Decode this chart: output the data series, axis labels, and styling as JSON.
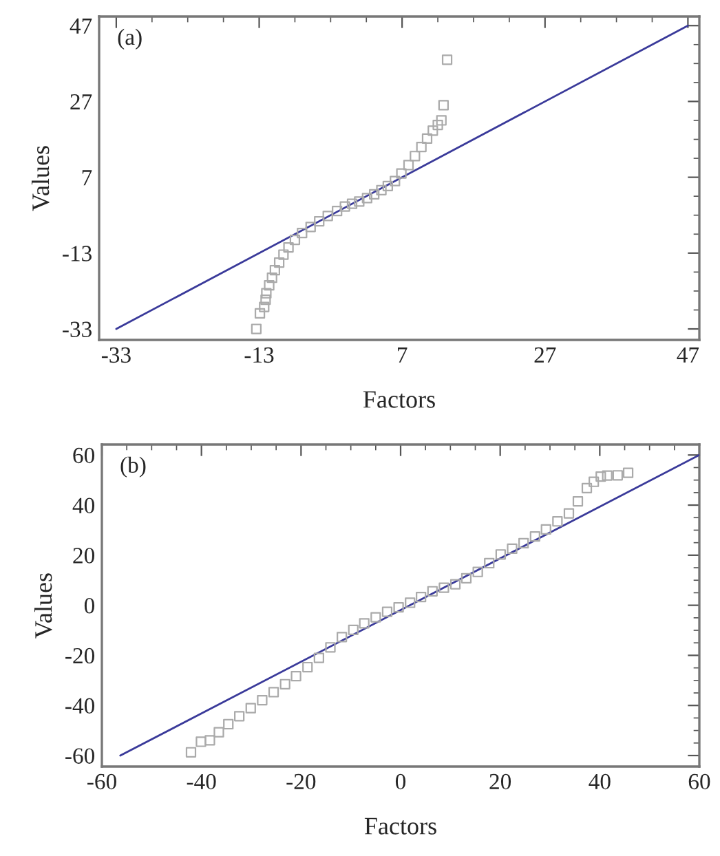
{
  "chart_data": [
    {
      "type": "scatter",
      "xlabel": "Factors",
      "ylabel": "Values",
      "annotations": [
        "(a)"
      ],
      "xlim": [
        -35.4,
        48.6
      ],
      "ylim": [
        -35.9,
        49.4
      ],
      "xticks": [
        -33,
        -13,
        7,
        27,
        47
      ],
      "yticks": [
        -33,
        -13,
        7,
        27,
        47
      ],
      "marker": "square",
      "grid": false,
      "series": [
        {
          "color": "#aaaaaa",
          "x": [
            -13.4,
            -12.9,
            -12.3,
            -12.1,
            -12.0,
            -11.6,
            -11.2,
            -10.8,
            -10.2,
            -9.6,
            -8.9,
            -8.0,
            -7.0,
            -5.8,
            -4.6,
            -3.4,
            -2.1,
            -1.0,
            0.0,
            1.0,
            2.1,
            3.1,
            4.1,
            5.0,
            6.0,
            6.9,
            7.9,
            8.8,
            9.7,
            10.5,
            11.3,
            12.0,
            12.5,
            12.8,
            13.3
          ],
          "values": [
            -33.0,
            -28.9,
            -27.2,
            -25.3,
            -23.6,
            -21.5,
            -19.5,
            -17.5,
            -15.5,
            -13.4,
            -11.5,
            -9.5,
            -7.7,
            -6.1,
            -4.6,
            -3.2,
            -1.9,
            -0.7,
            0.0,
            0.6,
            1.5,
            2.5,
            3.6,
            4.7,
            6.0,
            8.0,
            10.2,
            12.6,
            15.0,
            17.2,
            19.3,
            20.8,
            22.0,
            26.0,
            38.0
          ]
        },
        {
          "type": "line",
          "color": "#3a3a9a",
          "x": [
            -33,
            47
          ],
          "values": [
            -33,
            47
          ],
          "marker": "none"
        }
      ]
    },
    {
      "type": "scatter",
      "xlabel": "Factors",
      "ylabel": "Values",
      "annotations": [
        "(b)"
      ],
      "xlim": [
        -60,
        60
      ],
      "ylim": [
        -64.4,
        64.2
      ],
      "xticks": [
        -60,
        -40,
        -20,
        0,
        20,
        40,
        60
      ],
      "yticks": [
        -60,
        -40,
        -20,
        0,
        20,
        40,
        60
      ],
      "marker": "square",
      "grid": false,
      "series": [
        {
          "color": "#aaaaaa",
          "x": [
            -42.1,
            -40.1,
            -38.3,
            -36.5,
            -34.6,
            -32.4,
            -30.1,
            -27.8,
            -25.5,
            -23.2,
            -21.0,
            -18.7,
            -16.4,
            -14.1,
            -11.8,
            -9.5,
            -7.3,
            -5.0,
            -2.7,
            -0.4,
            1.9,
            4.1,
            6.4,
            8.7,
            11.0,
            13.2,
            15.5,
            17.8,
            20.1,
            22.4,
            24.7,
            27.0,
            29.2,
            31.5,
            33.8,
            35.6,
            37.4,
            38.8,
            40.2,
            41.5,
            43.6,
            45.7
          ],
          "values": [
            -58.7,
            -54.5,
            -53.9,
            -50.7,
            -47.5,
            -44.3,
            -41.1,
            -37.9,
            -34.7,
            -31.5,
            -28.3,
            -24.7,
            -21.0,
            -16.8,
            -12.7,
            -9.8,
            -7.2,
            -4.8,
            -2.6,
            -0.8,
            1.0,
            3.3,
            5.6,
            7.0,
            8.4,
            10.8,
            13.3,
            16.8,
            20.3,
            22.6,
            24.8,
            27.5,
            30.3,
            33.5,
            36.7,
            41.5,
            46.8,
            49.3,
            51.4,
            51.8,
            51.9,
            52.9
          ]
        },
        {
          "type": "line",
          "color": "#3a3a9a",
          "x": [
            -56.3,
            60
          ],
          "values": [
            -60,
            60
          ],
          "marker": "none"
        }
      ]
    }
  ]
}
